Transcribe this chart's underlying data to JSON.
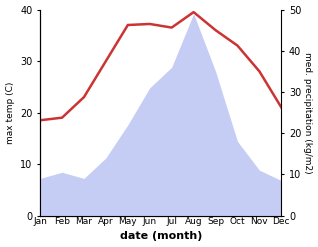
{
  "months": [
    "Jan",
    "Feb",
    "Mar",
    "Apr",
    "May",
    "Jun",
    "Jul",
    "Aug",
    "Sep",
    "Oct",
    "Nov",
    "Dec"
  ],
  "temperature": [
    18.5,
    19.0,
    23.0,
    30.0,
    37.0,
    37.2,
    36.5,
    39.5,
    36.0,
    33.0,
    28.0,
    21.0
  ],
  "precipitation": [
    9.0,
    10.5,
    9.0,
    14.0,
    22.0,
    31.0,
    36.0,
    49.0,
    35.0,
    18.0,
    11.0,
    8.5
  ],
  "temp_color": "#cc3333",
  "precip_fill_color": "#c5cdf5",
  "ylabel_left": "max temp (C)",
  "ylabel_right": "med. precipitation (kg/m2)",
  "xlabel": "date (month)",
  "ylim_left": [
    0,
    40
  ],
  "ylim_right": [
    0,
    50
  ],
  "background_color": "#ffffff"
}
